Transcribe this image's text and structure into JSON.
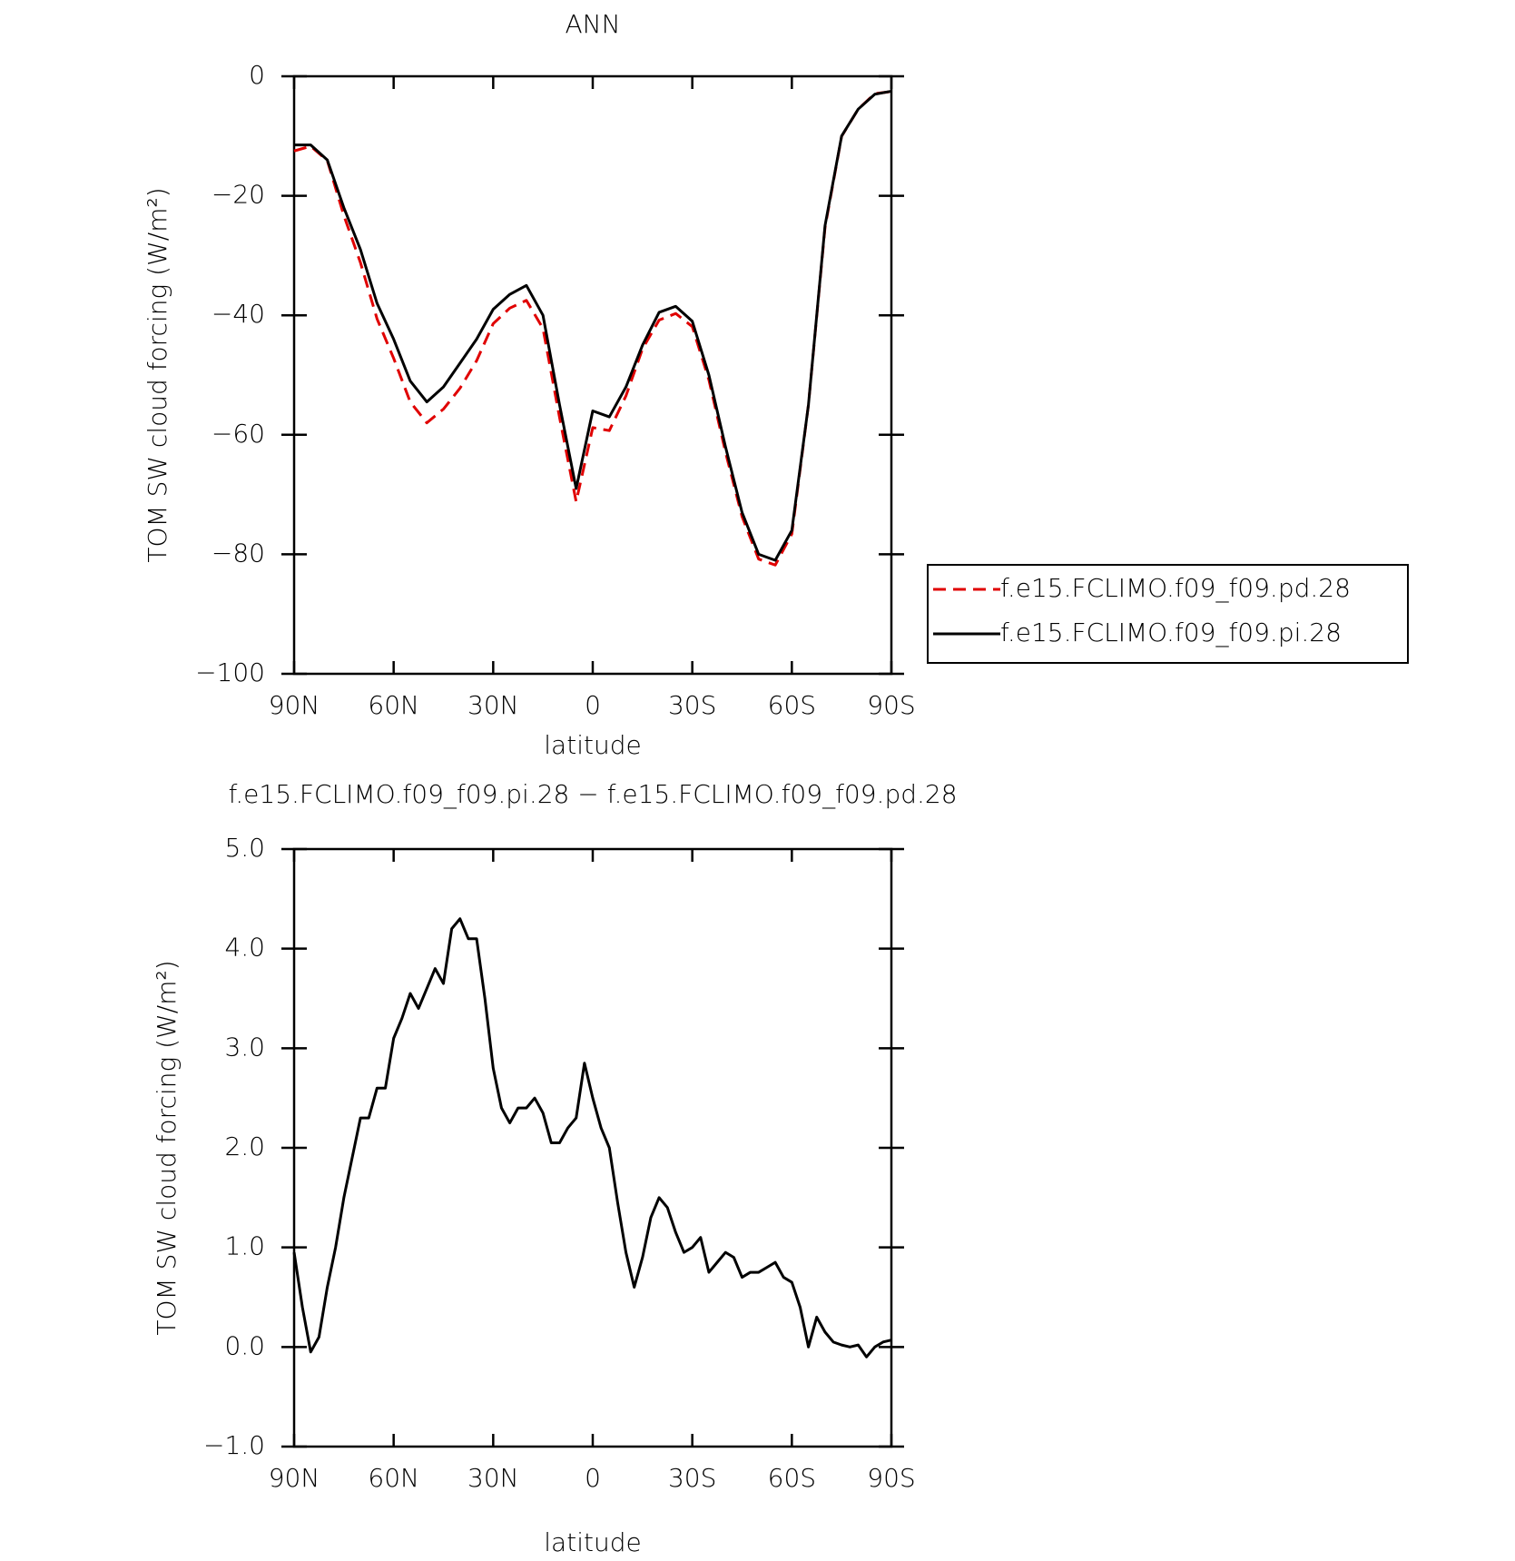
{
  "chart_data": [
    {
      "type": "line",
      "title": "ANN",
      "x": [
        90,
        85,
        80,
        75,
        70,
        65,
        60,
        55,
        50,
        45,
        40,
        35,
        30,
        25,
        20,
        15,
        10,
        5,
        0,
        -5,
        -10,
        -15,
        -20,
        -25,
        -30,
        -35,
        -40,
        -45,
        -50,
        -55,
        -60,
        -65,
        -70,
        -75,
        -80,
        -85,
        -90
      ],
      "series": [
        {
          "name": "f.e15.FCLIMO.f09_f09.pd.28",
          "color": "#e00000",
          "linestyle": "dashed",
          "values": [
            -12.5,
            -11.7,
            -14.1,
            -23.3,
            -31.2,
            -40.6,
            -47.2,
            -54.5,
            -58,
            -55.7,
            -52.2,
            -47.6,
            -41.4,
            -38.8,
            -37.5,
            -42.2,
            -57.1,
            -71.2,
            -58.8,
            -59.3,
            -53.5,
            -45.6,
            -40.8,
            -39.7,
            -41.9,
            -50.8,
            -62.9,
            -73.7,
            -80.8,
            -81.8,
            -76.6,
            -55,
            -25.3,
            -10.05,
            -5.5,
            -2.9,
            -2.55
          ]
        },
        {
          "name": "f.e15.FCLIMO.f09_f09.pi.28",
          "color": "#000000",
          "linestyle": "solid",
          "values": [
            -11.5,
            -11.5,
            -14,
            -22,
            -29,
            -38,
            -44,
            -51,
            -54.5,
            -52,
            -48,
            -44,
            -39,
            -36.5,
            -35,
            -40,
            -55,
            -69,
            -56,
            -57,
            -52,
            -45,
            -39.5,
            -38.5,
            -41,
            -50,
            -62,
            -73,
            -80,
            -81,
            -76,
            -55,
            -25,
            -10,
            -5.5,
            -3,
            -2.5
          ]
        }
      ],
      "xlim": [
        90,
        -90
      ],
      "xticks": [
        {
          "value": 90,
          "label": "90N"
        },
        {
          "value": 60,
          "label": "60N"
        },
        {
          "value": 30,
          "label": "30N"
        },
        0,
        {
          "value": -30,
          "label": "30S"
        },
        {
          "value": -60,
          "label": "60S"
        },
        {
          "value": -90,
          "label": "90S"
        }
      ],
      "ylim": [
        -100,
        0
      ],
      "yticks": [
        0,
        {
          "value": -20,
          "label": "−20"
        },
        {
          "value": -40,
          "label": "−40"
        },
        {
          "value": -60,
          "label": "−60"
        },
        {
          "value": -80,
          "label": "−80"
        },
        {
          "value": -100,
          "label": "−100"
        }
      ],
      "xlabel": "latitude",
      "ylabel": "TOM SW cloud forcing (W/m²)",
      "legend": "right"
    },
    {
      "type": "line",
      "title": "f.e15.FCLIMO.f09_f09.pi.28 − f.e15.FCLIMO.f09_f09.pd.28",
      "x": [
        90,
        87.5,
        85,
        82.5,
        80,
        77.5,
        75,
        72.5,
        70,
        67.5,
        65,
        62.5,
        60,
        57.5,
        55,
        52.5,
        50,
        47.5,
        45,
        42.5,
        40,
        37.5,
        35,
        32.5,
        30,
        27.5,
        25,
        22.5,
        20,
        17.5,
        15,
        12.5,
        10,
        7.5,
        5,
        2.5,
        0,
        -2.5,
        -5,
        -7.5,
        -10,
        -12.5,
        -15,
        -17.5,
        -20,
        -22.5,
        -25,
        -27.5,
        -30,
        -32.5,
        -35,
        -37.5,
        -40,
        -42.5,
        -45,
        -47.5,
        -50,
        -52.5,
        -55,
        -57.5,
        -60,
        -62.5,
        -65,
        -67.5,
        -70,
        -72.5,
        -75,
        -77.5,
        -80,
        -82.5,
        -85,
        -87.5,
        -90
      ],
      "color": "#000000",
      "values": [
        0.95,
        0.4,
        -0.05,
        0.1,
        0.6,
        1.0,
        1.5,
        1.9,
        2.3,
        2.3,
        2.6,
        2.6,
        3.1,
        3.3,
        3.55,
        3.4,
        3.6,
        3.8,
        3.65,
        4.2,
        4.3,
        4.1,
        4.1,
        3.5,
        2.8,
        2.4,
        2.25,
        2.4,
        2.4,
        2.5,
        2.35,
        2.05,
        2.05,
        2.2,
        2.3,
        2.85,
        2.5,
        2.2,
        2.0,
        1.45,
        0.95,
        0.6,
        0.9,
        1.3,
        1.5,
        1.4,
        1.15,
        0.95,
        1.0,
        1.1,
        0.75,
        0.85,
        0.95,
        0.9,
        0.7,
        0.75,
        0.75,
        0.8,
        0.85,
        0.7,
        0.65,
        0.4,
        0.0,
        0.3,
        0.15,
        0.05,
        0.02,
        0.0,
        0.02,
        -0.1,
        0.0,
        0.05,
        0.07
      ],
      "xlim": [
        90,
        -90
      ],
      "xticks": [
        {
          "value": 90,
          "label": "90N"
        },
        {
          "value": 60,
          "label": "60N"
        },
        {
          "value": 30,
          "label": "30N"
        },
        0,
        {
          "value": -30,
          "label": "30S"
        },
        {
          "value": -60,
          "label": "60S"
        },
        {
          "value": -90,
          "label": "90S"
        }
      ],
      "ylim": [
        -1,
        5
      ],
      "yticks": [
        {
          "value": 5,
          "label": "5.0"
        },
        {
          "value": 4,
          "label": "4.0"
        },
        {
          "value": 3,
          "label": "3.0"
        },
        {
          "value": 2,
          "label": "2.0"
        },
        {
          "value": 1,
          "label": "1.0"
        },
        {
          "value": 0,
          "label": "0.0"
        },
        {
          "value": -1,
          "label": "−1.0"
        }
      ],
      "xlabel": "latitude",
      "ylabel": "TOM SW cloud forcing (W/m²)"
    }
  ]
}
